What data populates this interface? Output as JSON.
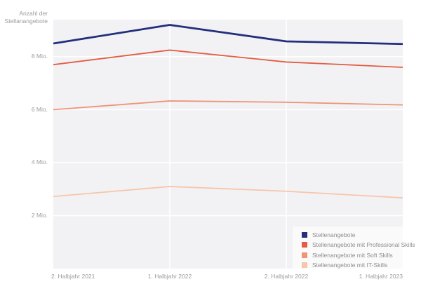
{
  "axis_title": {
    "line1": "Anzahl der",
    "line2": "Stellanangebote"
  },
  "chart_data": {
    "type": "line",
    "title": "",
    "ylabel": "Anzahl der Stellanangebote",
    "xlabel": "",
    "categories": [
      "2. Halbjahr 2021",
      "1. Halbjahr 2022",
      "2. Halbjahr 2022",
      "1. Halbjahr 2023"
    ],
    "series": [
      {
        "name": "Stellenangebote",
        "color": "#232e7d",
        "stroke_width": 2.8,
        "values": [
          8.5,
          9.2,
          8.58,
          8.48
        ]
      },
      {
        "name": "Stellenangebote mit Professional Skills",
        "color": "#e35c43",
        "stroke_width": 1.8,
        "values": [
          7.7,
          8.25,
          7.8,
          7.6
        ]
      },
      {
        "name": "Stellenangebote mit Soft Skills",
        "color": "#f0937a",
        "stroke_width": 1.8,
        "values": [
          6.0,
          6.33,
          6.28,
          6.18
        ]
      },
      {
        "name": "Stellenangebote mit IT-Skills",
        "color": "#f7c5aa",
        "stroke_width": 1.8,
        "values": [
          2.72,
          3.1,
          2.92,
          2.67
        ]
      }
    ],
    "ylim": [
      0,
      9.4
    ],
    "yticks": [
      {
        "value": 8,
        "label": "8 Mio."
      },
      {
        "value": 6,
        "label": "6 Mio."
      },
      {
        "value": 4,
        "label": "4 Mio."
      },
      {
        "value": 2,
        "label": "2 Mio."
      }
    ],
    "grid": true,
    "legend_position": "bottom-right",
    "colors": {
      "plot_background": "#f2f2f4",
      "gridline": "#ffffff",
      "axis_text": "#9c9c9c",
      "legend_text": "#8d8d8d",
      "legend_background": "rgba(255,255,255,0.62)"
    }
  }
}
